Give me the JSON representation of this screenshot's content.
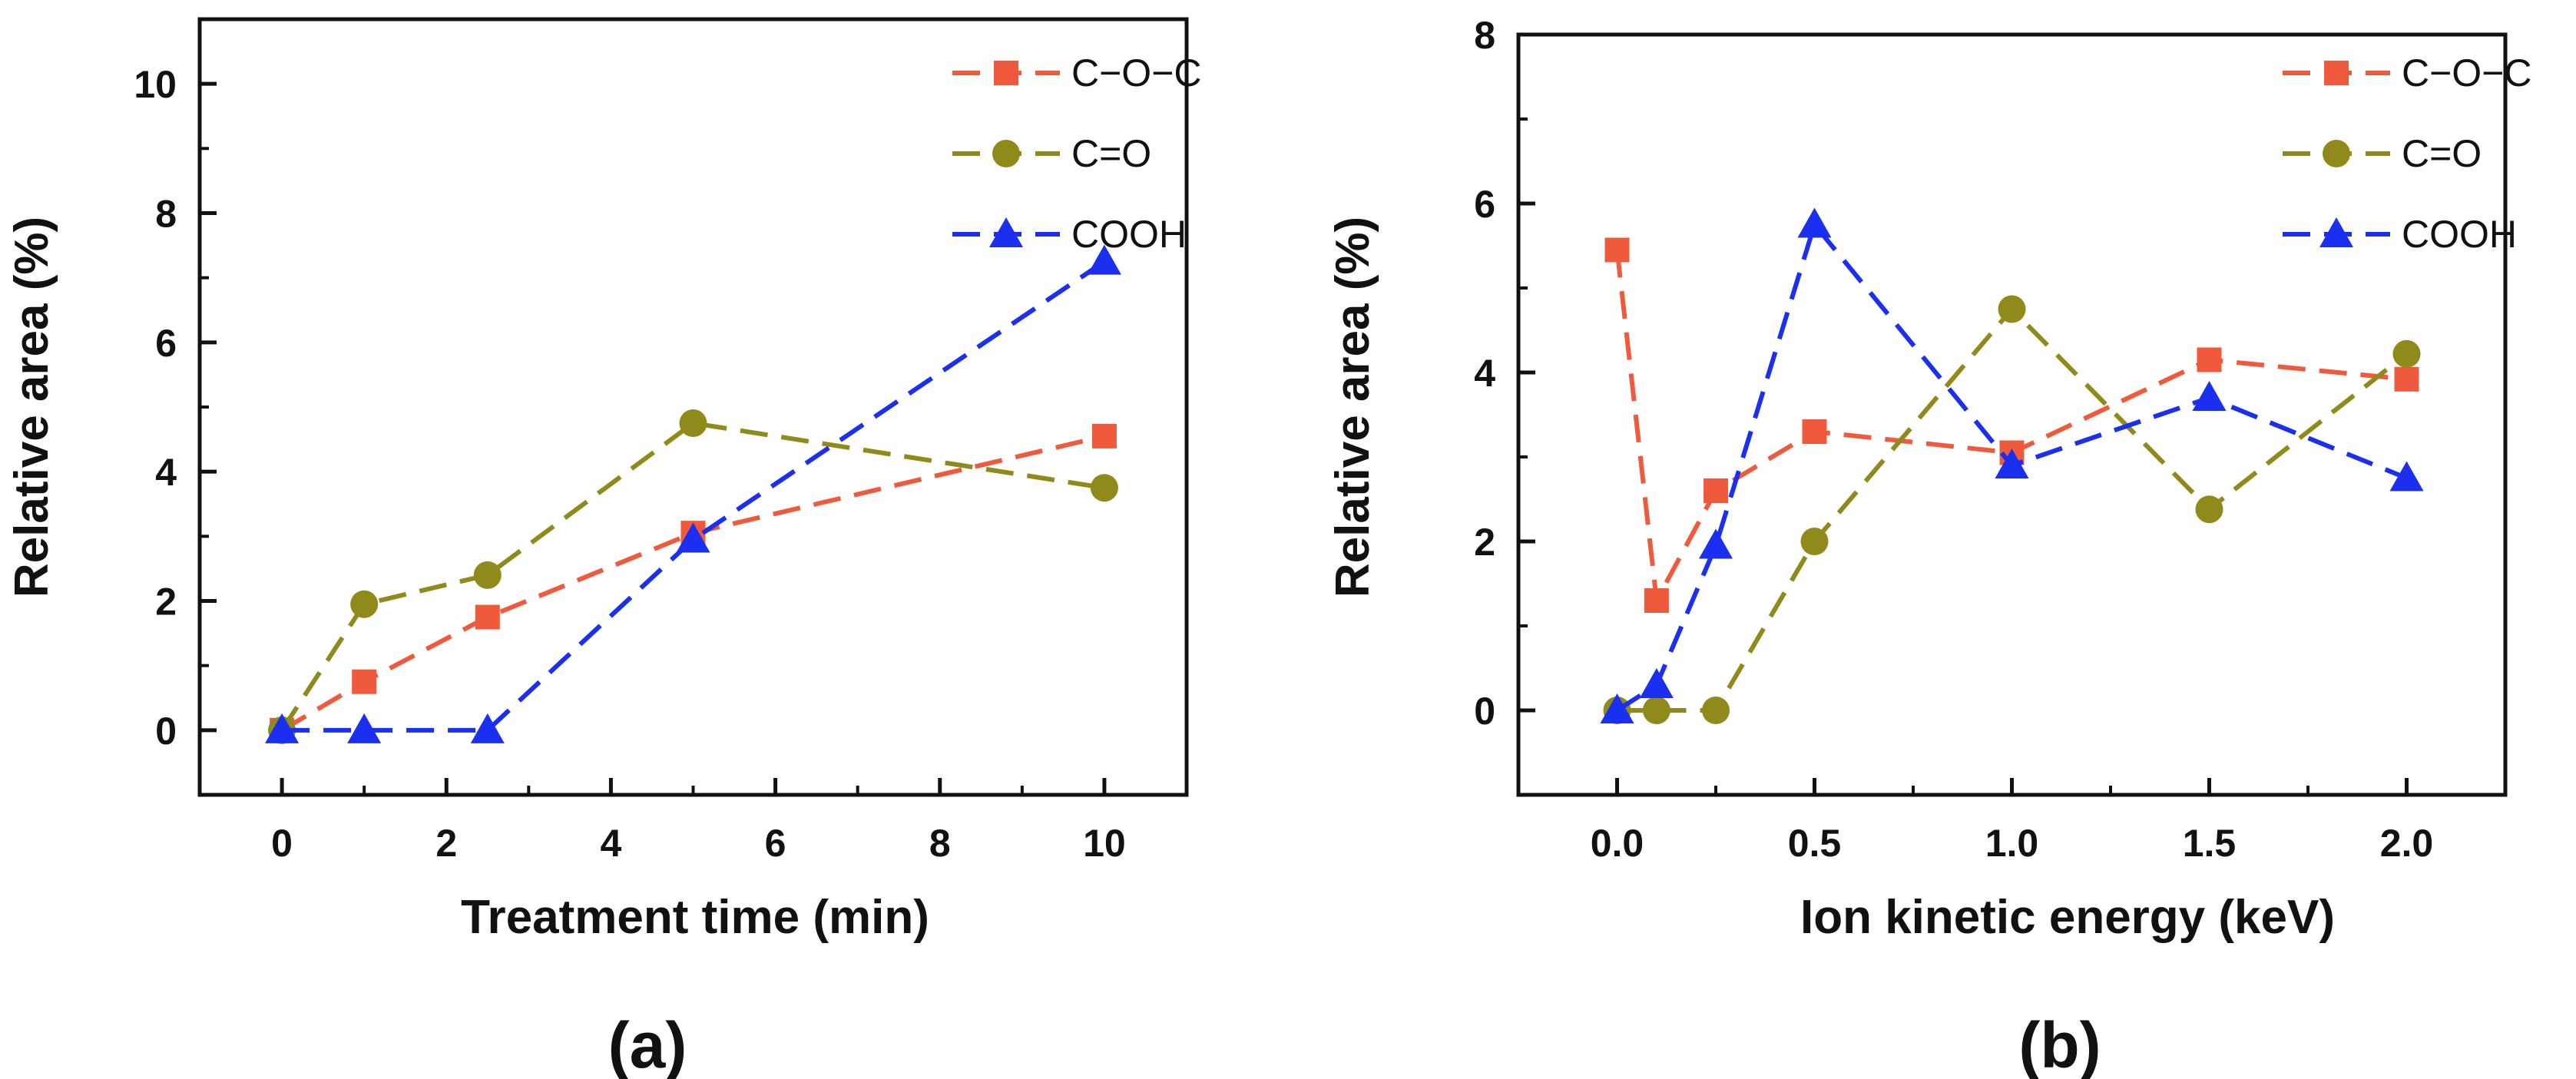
{
  "chart_data": [
    {
      "type": "line",
      "panel_label": "(a)",
      "xlabel": "Treatment time (min)",
      "ylabel": "Relative area (%)",
      "xlim": [
        -1,
        11
      ],
      "ylim": [
        -1,
        11
      ],
      "xticks": [
        0,
        2,
        4,
        6,
        8,
        10
      ],
      "yticks": [
        0,
        2,
        4,
        6,
        8,
        10
      ],
      "xtick_labels": [
        "0",
        "2",
        "4",
        "6",
        "8",
        "10"
      ],
      "ytick_labels": [
        "0",
        "2",
        "4",
        "6",
        "8",
        "10"
      ],
      "grid": false,
      "legend_position": "top-right",
      "series": [
        {
          "name": "C−O−C",
          "color": "#f05a3c",
          "marker": "square",
          "x": [
            0,
            1,
            2.5,
            5,
            10
          ],
          "y": [
            0,
            0.75,
            1.75,
            3.05,
            4.55
          ]
        },
        {
          "name": "C=O",
          "color": "#8f8a1a",
          "marker": "circle",
          "x": [
            0,
            1,
            2.5,
            5,
            10
          ],
          "y": [
            0,
            1.95,
            2.4,
            4.75,
            3.75
          ]
        },
        {
          "name": "COOH",
          "color": "#1a2ff0",
          "marker": "triangle",
          "x": [
            0,
            1,
            2.5,
            5,
            10
          ],
          "y": [
            0,
            0,
            0,
            2.95,
            7.25
          ]
        }
      ]
    },
    {
      "type": "line",
      "panel_label": "(b)",
      "xlabel": "Ion kinetic energy (keV)",
      "ylabel": "Relative area (%)",
      "xlim": [
        -0.25,
        2.25
      ],
      "ylim": [
        -1,
        8
      ],
      "xticks": [
        0,
        0.5,
        1,
        1.5,
        2
      ],
      "yticks": [
        0,
        2,
        4,
        6,
        8
      ],
      "xtick_labels": [
        "0.0",
        "0.5",
        "1.0",
        "1.5",
        "2.0"
      ],
      "ytick_labels": [
        "0",
        "2",
        "4",
        "6",
        "8"
      ],
      "grid": false,
      "legend_position": "top-right",
      "series": [
        {
          "name": "C−O−C",
          "color": "#f05a3c",
          "marker": "square",
          "x": [
            0,
            0.1,
            0.25,
            0.5,
            1,
            1.5,
            2
          ],
          "y": [
            5.45,
            1.3,
            2.6,
            3.3,
            3.05,
            4.15,
            3.92
          ]
        },
        {
          "name": "C=O",
          "color": "#8f8a1a",
          "marker": "circle",
          "x": [
            0,
            0.1,
            0.25,
            0.5,
            1,
            1.5,
            2
          ],
          "y": [
            0,
            0,
            0,
            2.0,
            4.75,
            2.38,
            4.22
          ]
        },
        {
          "name": "COOH",
          "color": "#1a2ff0",
          "marker": "triangle",
          "x": [
            0,
            0.1,
            0.25,
            0.5,
            1,
            1.5,
            2
          ],
          "y": [
            0,
            0.3,
            1.95,
            5.75,
            2.9,
            3.7,
            2.75
          ]
        }
      ]
    }
  ]
}
